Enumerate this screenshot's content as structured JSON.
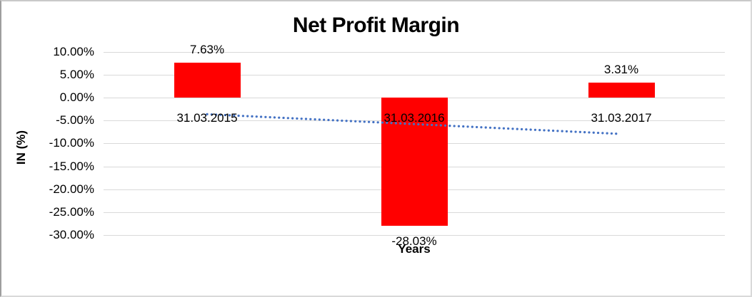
{
  "chart_data": {
    "type": "bar",
    "title": "Net Profit Margin",
    "xlabel": "Years",
    "ylabel": "IN (%)",
    "categories": [
      "31.03.2015",
      "31.03.2016",
      "31.03.2017"
    ],
    "values": [
      7.63,
      -28.03,
      3.31
    ],
    "data_labels": [
      "7.63%",
      "-28.03%",
      "3.31%"
    ],
    "ylim": [
      -30,
      10
    ],
    "yticks": [
      {
        "value": 10,
        "label": "10.00%"
      },
      {
        "value": 5,
        "label": "5.00%"
      },
      {
        "value": 0,
        "label": "0.00%"
      },
      {
        "value": -5,
        "label": "-5.00%"
      },
      {
        "value": -10,
        "label": "-10.00%"
      },
      {
        "value": -15,
        "label": "-15.00%"
      },
      {
        "value": -20,
        "label": "-20.00%"
      },
      {
        "value": -25,
        "label": "-25.00%"
      },
      {
        "value": -30,
        "label": "-30.00%"
      }
    ],
    "grid": true,
    "legend": false,
    "bar_color": "#FF0000",
    "gridline_color": "#D9D9D9",
    "text_color": "#000000",
    "trendline": {
      "type": "linear",
      "style": "dotted",
      "color": "#4472C4",
      "start_value": -3.6,
      "end_value": -7.9
    }
  }
}
